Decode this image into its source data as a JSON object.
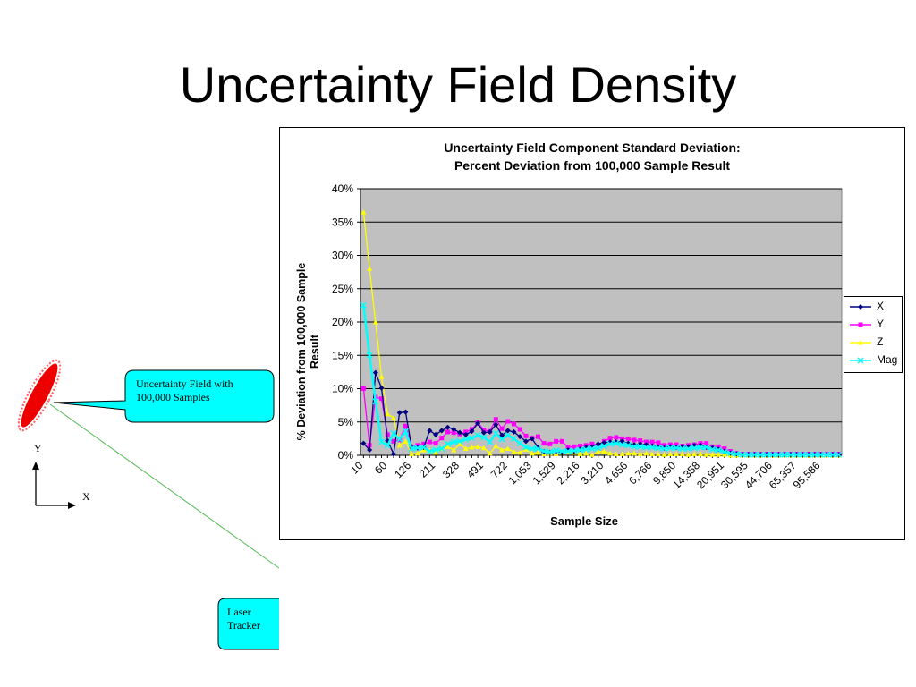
{
  "slide": {
    "title": "Uncertainty Field Density",
    "callout_field": "Uncertainty Field with 100,000 Samples",
    "callout_tracker": "Laser Tracker",
    "axis_y": "Y",
    "axis_x": "X"
  },
  "chart_data": {
    "type": "line",
    "title_line1": "Uncertainty Field Component Standard Deviation:",
    "title_line2": "Percent Deviation from 100,000 Sample Result",
    "xlabel": "Sample Size",
    "ylabel": "% Deviation from 100,000 Sample Result",
    "ylim": [
      0,
      40
    ],
    "yticks": [
      "0%",
      "5%",
      "10%",
      "15%",
      "20%",
      "25%",
      "30%",
      "35%",
      "40%"
    ],
    "x_tick_labels": [
      "10",
      "60",
      "126",
      "211",
      "328",
      "491",
      "722",
      "1,053",
      "1,529",
      "2,216",
      "3,210",
      "4,656",
      "6,766",
      "9,850",
      "14,358",
      "20,951",
      "30,595",
      "44,706",
      "65,357",
      "95,586"
    ],
    "x_label_every": 4,
    "grid": "horizontal",
    "plot_background": "#c0c0c0",
    "legend_position": "right",
    "series": [
      {
        "name": "X",
        "color": "#000080",
        "marker": "diamond",
        "values": [
          1.8,
          0.8,
          12.4,
          10.1,
          2.2,
          0.2,
          6.4,
          6.5,
          1.2,
          1.1,
          1.2,
          3.7,
          3.1,
          3.7,
          4.2,
          3.9,
          3.4,
          3.1,
          3.6,
          4.8,
          3.4,
          3.5,
          4.6,
          3.0,
          3.7,
          3.5,
          2.8,
          2.1,
          2.5,
          1.2,
          0.5,
          0.4,
          0.6,
          0.4,
          0.8,
          0.6,
          0.9,
          1.2,
          1.3,
          1.7,
          1.9,
          2.0,
          2.0,
          2.1,
          1.8,
          1.6,
          1.7,
          1.6,
          1.4,
          1.3,
          1.1,
          1.3,
          1.2,
          1.3,
          1.3,
          1.5,
          1.5,
          1.2,
          1.1,
          0.9,
          0.6,
          0.3,
          0.2,
          0.1,
          0.1,
          0.1,
          0.1,
          0.1,
          0.1,
          0.1,
          0.1,
          0.1,
          0.1,
          0.1,
          0.1,
          0.1,
          0.1,
          0.1,
          0.1,
          0.1
        ]
      },
      {
        "name": "Y",
        "color": "#ff00ff",
        "marker": "square",
        "values": [
          10.0,
          1.5,
          8.7,
          8.5,
          3.1,
          2.1,
          2.3,
          4.4,
          1.3,
          1.5,
          1.7,
          2.0,
          1.8,
          2.6,
          3.5,
          3.4,
          3.2,
          3.5,
          3.9,
          4.9,
          3.8,
          3.6,
          5.4,
          4.0,
          5.1,
          4.7,
          3.9,
          2.9,
          2.6,
          2.8,
          1.8,
          1.7,
          2.1,
          2.1,
          1.2,
          1.3,
          1.4,
          1.5,
          1.7,
          1.5,
          2.1,
          2.6,
          2.7,
          2.5,
          2.5,
          2.3,
          2.2,
          2.0,
          2.0,
          1.9,
          1.5,
          1.6,
          1.6,
          1.4,
          1.5,
          1.6,
          1.8,
          1.8,
          1.3,
          1.3,
          1.0,
          0.6,
          0.3,
          0.2,
          0.2,
          0.2,
          0.2,
          0.2,
          0.2,
          0.2,
          0.2,
          0.2,
          0.2,
          0.2,
          0.2,
          0.2,
          0.2,
          0.2,
          0.2,
          0.2
        ]
      },
      {
        "name": "Z",
        "color": "#ffff00",
        "marker": "triangle",
        "values": [
          36.5,
          28.0,
          20.0,
          11.8,
          6.2,
          5.6,
          1.5,
          2.1,
          0.2,
          0.3,
          0.8,
          0.7,
          0.4,
          1.0,
          1.3,
          0.8,
          1.7,
          1.0,
          1.2,
          1.3,
          1.1,
          0.3,
          1.4,
          0.8,
          1.0,
          0.5,
          0.4,
          0.9,
          0.3,
          0.4,
          0.2,
          0.3,
          0.2,
          0.4,
          0.5,
          0.4,
          0.2,
          0.3,
          0.1,
          0.5,
          0.6,
          0.3,
          0.2,
          0.2,
          0.3,
          0.3,
          0.2,
          0.3,
          0.2,
          0.2,
          0.1,
          0.2,
          0.2,
          0.2,
          0.1,
          0.2,
          0.2,
          0.1,
          0.1,
          0.1,
          0.1,
          0.0,
          0.0,
          0.0,
          0.0,
          0.0,
          0.0,
          0.0,
          0.0,
          0.0,
          0.0,
          0.0,
          0.0,
          0.0,
          0.0,
          0.0,
          0.0,
          0.0,
          0.0,
          0.0
        ]
      },
      {
        "name": "Mag",
        "color": "#00ffff",
        "marker": "x",
        "values": [
          22.5,
          15.0,
          8.1,
          2.0,
          1.5,
          3.3,
          2.4,
          3.6,
          1.0,
          1.1,
          1.2,
          0.6,
          0.8,
          1.0,
          1.7,
          2.0,
          2.1,
          2.4,
          2.6,
          3.0,
          2.7,
          2.0,
          3.3,
          2.4,
          3.0,
          2.5,
          1.8,
          1.2,
          1.0,
          1.0,
          0.6,
          0.5,
          0.7,
          0.6,
          0.6,
          0.7,
          0.8,
          0.9,
          1.0,
          1.1,
          1.4,
          1.7,
          1.8,
          1.6,
          1.5,
          1.3,
          1.3,
          1.2,
          1.2,
          1.1,
          1.0,
          1.1,
          1.1,
          1.0,
          1.0,
          1.1,
          1.2,
          1.2,
          0.9,
          0.8,
          0.5,
          0.3,
          0.2,
          0.1,
          0.1,
          0.1,
          0.1,
          0.1,
          0.1,
          0.1,
          0.1,
          0.1,
          0.1,
          0.1,
          0.1,
          0.1,
          0.1,
          0.1,
          0.1,
          0.1
        ]
      }
    ]
  }
}
